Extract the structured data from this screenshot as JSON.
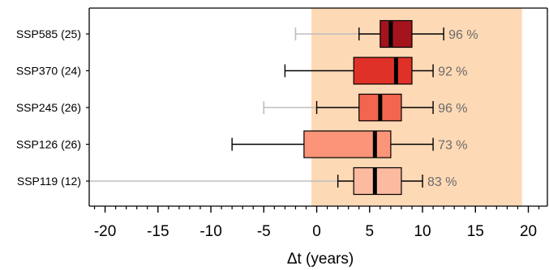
{
  "chart_data": {
    "type": "boxplot",
    "orientation": "horizontal",
    "xlabel": "Δt (years)",
    "xlim": [
      -21.5,
      21.8
    ],
    "x_ticks": [
      -20,
      -15,
      -10,
      -5,
      0,
      5,
      10,
      15,
      20
    ],
    "x_tick_labels": [
      "-20",
      "-15",
      "-10",
      "-5",
      "0",
      "5",
      "10",
      "15",
      "20"
    ],
    "x_minor_step": 1,
    "shaded_range": [
      -0.5,
      19.4
    ],
    "shaded_color": "#fdd9b5",
    "categories": [
      "SSP585 (25)",
      "SSP370 (24)",
      "SSP245 (26)",
      "SSP126 (26)",
      "SSP119 (12)"
    ],
    "series": [
      {
        "label": "SSP585 (25)",
        "faint_min": -2,
        "whisker_low": 4,
        "q1": 6,
        "median": 7,
        "q3": 9,
        "whisker_high": 12,
        "percent": "96 %",
        "color": "#a5141c"
      },
      {
        "label": "SSP370 (24)",
        "faint_min": null,
        "whisker_low": -3,
        "q1": 3.5,
        "median": 7.5,
        "q3": 9,
        "whisker_high": 11,
        "percent": "92 %",
        "color": "#e03128"
      },
      {
        "label": "SSP245 (26)",
        "faint_min": -5,
        "whisker_low": 0,
        "q1": 4,
        "median": 6,
        "q3": 8,
        "whisker_high": 11,
        "percent": "96 %",
        "color": "#f2654e"
      },
      {
        "label": "SSP126 (26)",
        "faint_min": null,
        "whisker_low": -8,
        "q1": -1.2,
        "median": 5.5,
        "q3": 7,
        "whisker_high": 11,
        "percent": "73 %",
        "color": "#fb9478"
      },
      {
        "label": "SSP119 (12)",
        "faint_min": -21.5,
        "whisker_low": 2,
        "q1": 3.5,
        "median": 5.5,
        "q3": 8,
        "whisker_high": 10,
        "percent": "83 %",
        "color": "#fcbba1"
      }
    ],
    "faint_whisker_color": "#bdbdbd"
  }
}
